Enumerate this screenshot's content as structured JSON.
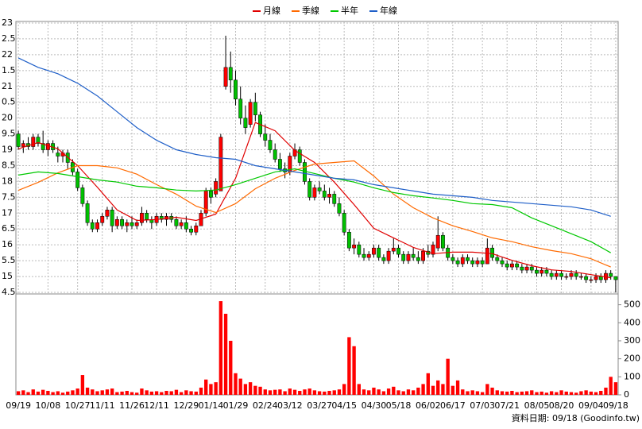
{
  "chart_data": {
    "type": "candlestick",
    "categories": [
      "09/19",
      null,
      null,
      null,
      null,
      null,
      "10/08",
      null,
      null,
      null,
      null,
      null,
      "10/27",
      null,
      null,
      null,
      null,
      "11/11",
      null,
      null,
      null,
      null,
      null,
      "11/26",
      null,
      null,
      null,
      null,
      "12/11",
      null,
      null,
      null,
      null,
      null,
      "12/29",
      null,
      null,
      null,
      null,
      "01/14",
      null,
      null,
      null,
      null,
      "01/29",
      null,
      null,
      null,
      null,
      null,
      "02/24",
      null,
      null,
      null,
      null,
      "03/12",
      null,
      null,
      null,
      null,
      null,
      "03/27",
      null,
      null,
      null,
      null,
      "04/15",
      null,
      null,
      null,
      null,
      null,
      "04/30",
      null,
      null,
      null,
      null,
      "05/18",
      null,
      null,
      null,
      null,
      null,
      "06/02",
      null,
      null,
      null,
      null,
      "06/17",
      null,
      null,
      null,
      null,
      null,
      "07/03",
      null,
      null,
      null,
      null,
      "07/21",
      null,
      null,
      null,
      null,
      null,
      "08/05",
      null,
      null,
      null,
      null,
      "08/20",
      null,
      null,
      null,
      null,
      null,
      "09/04",
      null,
      null,
      null,
      null,
      "09/18"
    ],
    "xlim": [
      -0.5,
      121.5
    ],
    "ylim": [
      14.45,
      23.05
    ],
    "yticks": [
      23,
      {
        "value": 22.5,
        "label": "2.5"
      },
      22,
      {
        "value": 21.5,
        "label": "1.5"
      },
      21,
      {
        "value": 20.5,
        "label": "0.5"
      },
      20,
      {
        "value": 19.5,
        "label": "9.5"
      },
      19,
      {
        "value": 18.5,
        "label": "8.5"
      },
      18,
      {
        "value": 17.5,
        "label": "7.5"
      },
      17,
      {
        "value": 16.5,
        "label": "6.5"
      },
      16,
      {
        "value": 15.5,
        "label": "5.5"
      },
      15,
      {
        "value": 14.5,
        "label": "4.5"
      }
    ],
    "grid": true,
    "up_color": "#ff0000",
    "down_color": "#00c000",
    "open": [
      19.5,
      19.1,
      19.2,
      19.1,
      19.4,
      19.2,
      19.0,
      19.2,
      18.9,
      18.8,
      18.9,
      18.6,
      18.3,
      17.8,
      17.3,
      16.7,
      16.5,
      16.7,
      16.9,
      17.1,
      16.6,
      16.8,
      16.6,
      16.7,
      16.6,
      16.7,
      17.0,
      16.8,
      16.7,
      16.9,
      16.8,
      16.9,
      16.8,
      16.6,
      16.7,
      16.5,
      16.4,
      16.6,
      17.0,
      17.7,
      17.6,
      17.7,
      21.0,
      21.6,
      21.2,
      20.6,
      20.0,
      19.8,
      20.5,
      20.1,
      19.5,
      19.3,
      19.0,
      18.7,
      18.4,
      18.3,
      18.8,
      19.0,
      18.6,
      18.0,
      17.5,
      17.8,
      17.7,
      17.5,
      17.6,
      17.3,
      17.0,
      16.4,
      15.9,
      16.0,
      15.7,
      15.6,
      15.7,
      15.9,
      15.6,
      15.5,
      15.8,
      15.9,
      15.7,
      15.5,
      15.7,
      15.6,
      15.5,
      15.8,
      15.7,
      15.9,
      16.3,
      15.9,
      15.6,
      15.5,
      15.4,
      15.6,
      15.5,
      15.4,
      15.5,
      15.4,
      15.9,
      15.6,
      15.5,
      15.4,
      15.3,
      15.4,
      15.3,
      15.2,
      15.3,
      15.2,
      15.1,
      15.2,
      15.1,
      15.0,
      15.1,
      15.0,
      15.0,
      15.1,
      15.0,
      15.0,
      14.9,
      14.9,
      15.0,
      14.9,
      15.1,
      15.0
    ],
    "high": [
      19.6,
      19.3,
      19.4,
      19.5,
      19.5,
      19.6,
      19.3,
      19.3,
      19.1,
      19.0,
      19.0,
      18.7,
      18.4,
      17.9,
      17.4,
      16.8,
      16.8,
      17.0,
      17.2,
      17.2,
      16.9,
      16.9,
      16.8,
      16.9,
      16.8,
      17.2,
      17.1,
      16.9,
      17.0,
      17.0,
      17.0,
      17.0,
      16.9,
      16.8,
      16.9,
      16.6,
      16.7,
      17.1,
      17.8,
      17.8,
      18.1,
      19.5,
      22.6,
      22.1,
      21.5,
      21.0,
      20.4,
      20.6,
      20.8,
      20.2,
      19.8,
      19.5,
      19.2,
      18.9,
      18.6,
      18.9,
      19.2,
      19.1,
      18.7,
      18.1,
      17.9,
      18.0,
      17.9,
      17.8,
      17.7,
      17.5,
      17.1,
      16.5,
      16.2,
      16.1,
      15.9,
      15.8,
      16.0,
      16.0,
      15.7,
      15.9,
      16.2,
      16.0,
      15.8,
      15.8,
      15.9,
      15.8,
      15.9,
      16.0,
      16.1,
      16.9,
      16.4,
      16.0,
      15.7,
      15.6,
      15.7,
      15.7,
      15.6,
      15.6,
      15.6,
      16.2,
      16.0,
      15.7,
      15.6,
      15.5,
      15.5,
      15.5,
      15.4,
      15.4,
      15.4,
      15.3,
      15.3,
      15.3,
      15.2,
      15.2,
      15.2,
      15.1,
      15.2,
      15.2,
      15.1,
      15.1,
      15.0,
      15.1,
      15.1,
      15.2,
      15.2,
      15.0
    ],
    "low": [
      19.0,
      18.9,
      19.0,
      19.0,
      19.1,
      18.9,
      18.8,
      18.9,
      18.6,
      18.6,
      18.4,
      18.2,
      17.7,
      17.2,
      16.6,
      16.4,
      16.4,
      16.6,
      16.8,
      16.4,
      16.5,
      16.5,
      16.4,
      16.5,
      16.5,
      16.6,
      16.7,
      16.5,
      16.6,
      16.7,
      16.6,
      16.7,
      16.5,
      16.5,
      16.4,
      16.3,
      16.3,
      16.6,
      16.9,
      17.3,
      17.5,
      17.7,
      20.9,
      20.8,
      20.4,
      19.8,
      19.5,
      19.7,
      19.9,
      19.4,
      19.1,
      18.9,
      18.6,
      18.3,
      18.1,
      18.2,
      18.7,
      18.5,
      17.9,
      17.4,
      17.4,
      17.6,
      17.4,
      17.3,
      17.2,
      16.9,
      16.3,
      15.8,
      15.7,
      15.6,
      15.5,
      15.5,
      15.6,
      15.5,
      15.4,
      15.4,
      15.7,
      15.6,
      15.4,
      15.4,
      15.5,
      15.4,
      15.4,
      15.6,
      15.6,
      15.8,
      15.8,
      15.5,
      15.4,
      15.3,
      15.3,
      15.4,
      15.3,
      15.3,
      15.3,
      15.4,
      15.5,
      15.4,
      15.3,
      15.2,
      15.2,
      15.2,
      15.1,
      15.1,
      15.1,
      15.0,
      15.0,
      15.0,
      14.9,
      14.9,
      14.9,
      14.9,
      14.9,
      14.9,
      14.9,
      14.8,
      14.8,
      14.8,
      14.8,
      14.8,
      14.9,
      14.5
    ],
    "close": [
      19.1,
      19.2,
      19.1,
      19.4,
      19.2,
      19.0,
      19.2,
      19.0,
      18.8,
      18.9,
      18.6,
      18.3,
      17.8,
      17.3,
      16.7,
      16.5,
      16.7,
      16.9,
      17.1,
      16.6,
      16.8,
      16.6,
      16.7,
      16.6,
      16.7,
      17.0,
      16.8,
      16.7,
      16.9,
      16.8,
      16.9,
      16.8,
      16.6,
      16.7,
      16.5,
      16.4,
      16.6,
      17.0,
      17.7,
      17.5,
      18.0,
      19.4,
      21.6,
      21.2,
      20.6,
      20.0,
      19.7,
      20.5,
      20.1,
      19.5,
      19.3,
      19.0,
      18.7,
      18.4,
      18.3,
      18.8,
      19.0,
      18.6,
      18.0,
      17.5,
      17.8,
      17.7,
      17.5,
      17.6,
      17.3,
      17.0,
      16.4,
      15.9,
      16.0,
      15.7,
      15.6,
      15.7,
      15.9,
      15.6,
      15.5,
      15.8,
      15.9,
      15.7,
      15.5,
      15.7,
      15.6,
      15.5,
      15.8,
      15.7,
      16.0,
      16.3,
      15.9,
      15.6,
      15.5,
      15.4,
      15.6,
      15.5,
      15.4,
      15.5,
      15.4,
      15.9,
      15.6,
      15.5,
      15.4,
      15.3,
      15.4,
      15.3,
      15.2,
      15.3,
      15.2,
      15.1,
      15.2,
      15.1,
      15.0,
      15.1,
      15.0,
      15.0,
      15.1,
      15.0,
      15.0,
      14.9,
      14.9,
      15.0,
      14.9,
      15.1,
      15.0,
      14.9
    ],
    "series": [
      {
        "name": "月線",
        "color": "#e00000",
        "x": [
          0,
          4,
          8,
          12,
          16,
          20,
          24,
          28,
          32,
          36,
          40,
          44,
          48,
          52,
          56,
          60,
          64,
          68,
          72,
          76,
          80,
          84,
          88,
          92,
          96,
          100,
          104,
          108,
          112,
          116,
          120
        ],
        "values": [
          19.03,
          19.23,
          19.03,
          18.5,
          17.82,
          17.1,
          16.77,
          16.8,
          16.87,
          16.77,
          16.97,
          18.1,
          19.86,
          19.6,
          18.98,
          18.6,
          17.98,
          17.27,
          16.52,
          16.22,
          15.92,
          15.72,
          15.77,
          15.77,
          15.72,
          15.51,
          15.34,
          15.21,
          15.16,
          15.06,
          14.96
        ]
      },
      {
        "name": "季線",
        "color": "#ff6a00",
        "x": [
          0,
          4,
          8,
          12,
          16,
          20,
          24,
          28,
          32,
          36,
          40,
          44,
          48,
          52,
          56,
          60,
          64,
          68,
          72,
          76,
          80,
          84,
          88,
          92,
          96,
          100,
          104,
          108,
          112,
          116,
          120
        ],
        "values": [
          17.72,
          17.97,
          18.27,
          18.5,
          18.5,
          18.43,
          18.23,
          17.9,
          17.6,
          17.22,
          17.02,
          17.3,
          17.77,
          18.1,
          18.35,
          18.55,
          18.6,
          18.65,
          18.17,
          17.6,
          17.17,
          16.85,
          16.6,
          16.42,
          16.22,
          16.1,
          15.94,
          15.82,
          15.72,
          15.56,
          15.3
        ]
      },
      {
        "name": "半年",
        "color": "#00c800",
        "x": [
          0,
          4,
          8,
          12,
          16,
          20,
          24,
          28,
          32,
          36,
          40,
          44,
          48,
          52,
          56,
          60,
          64,
          68,
          72,
          76,
          80,
          84,
          88,
          92,
          96,
          100,
          104,
          108,
          112,
          116,
          120
        ],
        "values": [
          18.2,
          18.3,
          18.25,
          18.15,
          18.05,
          17.98,
          17.85,
          17.8,
          17.73,
          17.7,
          17.73,
          17.9,
          18.1,
          18.3,
          18.4,
          18.25,
          18.1,
          17.98,
          17.8,
          17.65,
          17.55,
          17.48,
          17.4,
          17.3,
          17.27,
          17.17,
          16.85,
          16.6,
          16.35,
          16.1,
          15.75
        ]
      },
      {
        "name": "年線",
        "color": "#1f5fc8",
        "x": [
          0,
          4,
          8,
          12,
          16,
          20,
          24,
          28,
          32,
          36,
          40,
          44,
          48,
          52,
          56,
          60,
          64,
          68,
          72,
          76,
          80,
          84,
          88,
          92,
          96,
          100,
          104,
          108,
          112,
          116,
          120
        ],
        "values": [
          21.9,
          21.6,
          21.4,
          21.1,
          20.7,
          20.2,
          19.7,
          19.3,
          19.0,
          18.85,
          18.75,
          18.7,
          18.5,
          18.4,
          18.3,
          18.2,
          18.1,
          18.05,
          17.9,
          17.8,
          17.7,
          17.6,
          17.55,
          17.5,
          17.4,
          17.35,
          17.3,
          17.25,
          17.2,
          17.1,
          16.9
        ]
      }
    ],
    "volume": {
      "color": "#ff0000",
      "ylim": [
        0,
        560
      ],
      "yticks": [
        0,
        100,
        200,
        300,
        400,
        500
      ],
      "values": [
        20,
        25,
        15,
        30,
        18,
        28,
        22,
        15,
        20,
        12,
        18,
        25,
        35,
        110,
        40,
        30,
        20,
        25,
        30,
        35,
        15,
        18,
        22,
        15,
        12,
        35,
        25,
        18,
        20,
        15,
        22,
        20,
        28,
        15,
        25,
        20,
        18,
        40,
        85,
        60,
        70,
        520,
        450,
        300,
        120,
        90,
        60,
        70,
        50,
        45,
        30,
        25,
        28,
        30,
        20,
        35,
        28,
        22,
        30,
        35,
        25,
        20,
        18,
        22,
        25,
        30,
        60,
        320,
        270,
        60,
        30,
        25,
        40,
        30,
        20,
        35,
        45,
        25,
        20,
        30,
        25,
        40,
        60,
        120,
        50,
        80,
        60,
        200,
        50,
        80,
        30,
        20,
        25,
        20,
        15,
        60,
        40,
        25,
        20,
        18,
        22,
        15,
        18,
        20,
        25,
        15,
        18,
        12,
        20,
        15,
        25,
        18,
        15,
        12,
        20,
        25,
        18,
        15,
        22,
        40,
        100,
        70
      ]
    },
    "note": "資料日期: 09/18 (Goodinfo.tw)"
  }
}
